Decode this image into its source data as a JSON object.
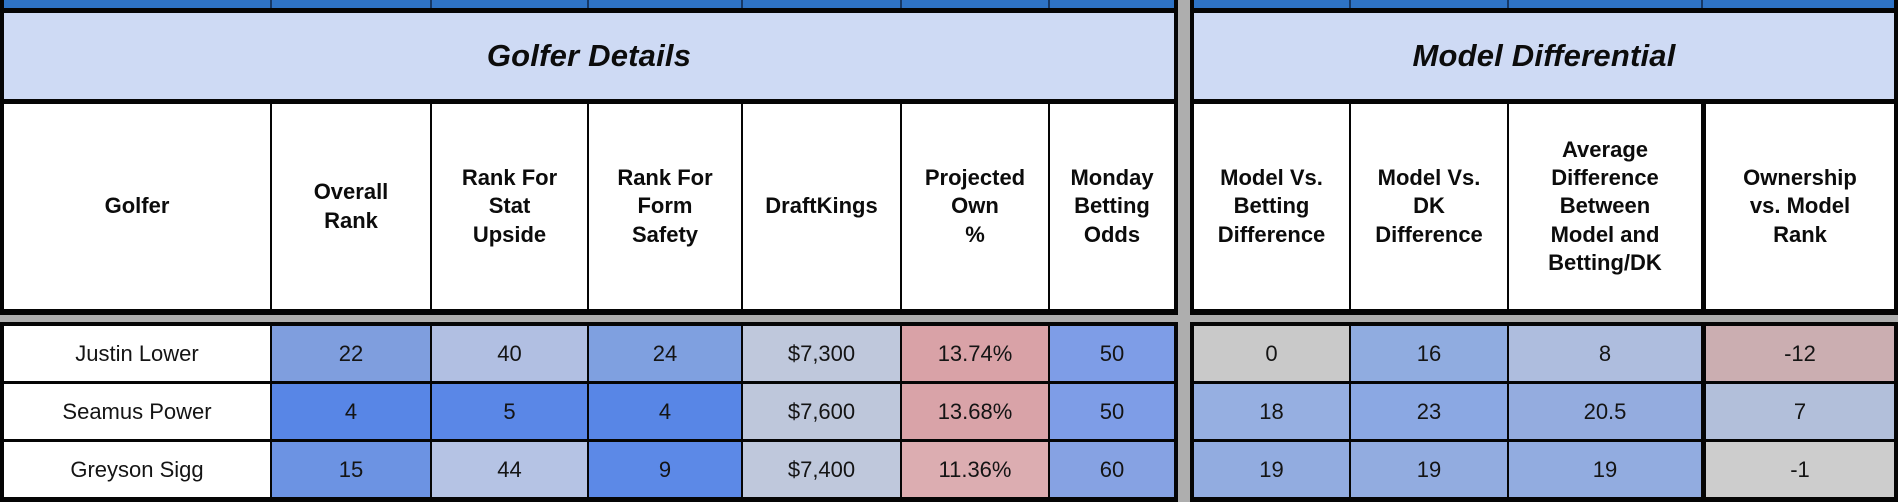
{
  "sheet": {
    "top_row_color": "#2E73C6",
    "gridline_gray": "#AEAEAE",
    "title_bg": "#CEDAF4",
    "border_black": "#050505"
  },
  "left_table": {
    "title": "Golfer Details",
    "columns": [
      "Golfer",
      "Overall\nRank",
      "Rank For\nStat\nUpside",
      "Rank For\nForm\nSafety",
      "DraftKings",
      "Projected\nOwn\n%",
      "Monday\nBetting\nOdds"
    ],
    "rows": [
      {
        "cells": [
          {
            "v": "Justin Lower",
            "bg": "#FFFFFF"
          },
          {
            "v": "22",
            "bg": "#7F9EDE"
          },
          {
            "v": "40",
            "bg": "#B1BFE2"
          },
          {
            "v": "24",
            "bg": "#7FA0E0"
          },
          {
            "v": "$7,300",
            "bg": "#BFC8DC"
          },
          {
            "v": "13.74%",
            "bg": "#D9A2A7"
          },
          {
            "v": "50",
            "bg": "#7E9DE7"
          }
        ]
      },
      {
        "cells": [
          {
            "v": "Seamus Power",
            "bg": "#FFFFFF"
          },
          {
            "v": "4",
            "bg": "#5886E6"
          },
          {
            "v": "5",
            "bg": "#5A87E7"
          },
          {
            "v": "4",
            "bg": "#5886E6"
          },
          {
            "v": "$7,600",
            "bg": "#BEC7DB"
          },
          {
            "v": "13.68%",
            "bg": "#D9A3A8"
          },
          {
            "v": "50",
            "bg": "#7E9DE7"
          }
        ]
      },
      {
        "cells": [
          {
            "v": "Greyson Sigg",
            "bg": "#FFFFFF"
          },
          {
            "v": "15",
            "bg": "#6C93E3"
          },
          {
            "v": "44",
            "bg": "#B5C3E4"
          },
          {
            "v": "9",
            "bg": "#5C89E7"
          },
          {
            "v": "$7,400",
            "bg": "#BFC8DC"
          },
          {
            "v": "11.36%",
            "bg": "#DCADB1"
          },
          {
            "v": "60",
            "bg": "#86A2E3"
          }
        ]
      }
    ]
  },
  "right_table": {
    "title": "Model Differential",
    "columns": [
      "Model Vs.\nBetting\nDifference",
      "Model Vs.\nDK\nDifference",
      "Average\nDifference\nBetween\nModel and\nBetting/DK",
      "Ownership\nvs. Model\nRank"
    ],
    "rows": [
      {
        "cells": [
          {
            "v": "0",
            "bg": "#C9C9C9"
          },
          {
            "v": "16",
            "bg": "#90ACE0"
          },
          {
            "v": "8",
            "bg": "#AEBDDE"
          },
          {
            "v": "-12",
            "bg": "#CBAEB1"
          }
        ]
      },
      {
        "cells": [
          {
            "v": "18",
            "bg": "#96AFE1"
          },
          {
            "v": "23",
            "bg": "#8BA8E3"
          },
          {
            "v": "20.5",
            "bg": "#94ACDF"
          },
          {
            "v": "7",
            "bg": "#B2BFDA"
          }
        ]
      },
      {
        "cells": [
          {
            "v": "19",
            "bg": "#92ACE0"
          },
          {
            "v": "19",
            "bg": "#92ACE0"
          },
          {
            "v": "19",
            "bg": "#92ACE0"
          },
          {
            "v": "-1",
            "bg": "#CDCDCD"
          }
        ]
      }
    ]
  }
}
